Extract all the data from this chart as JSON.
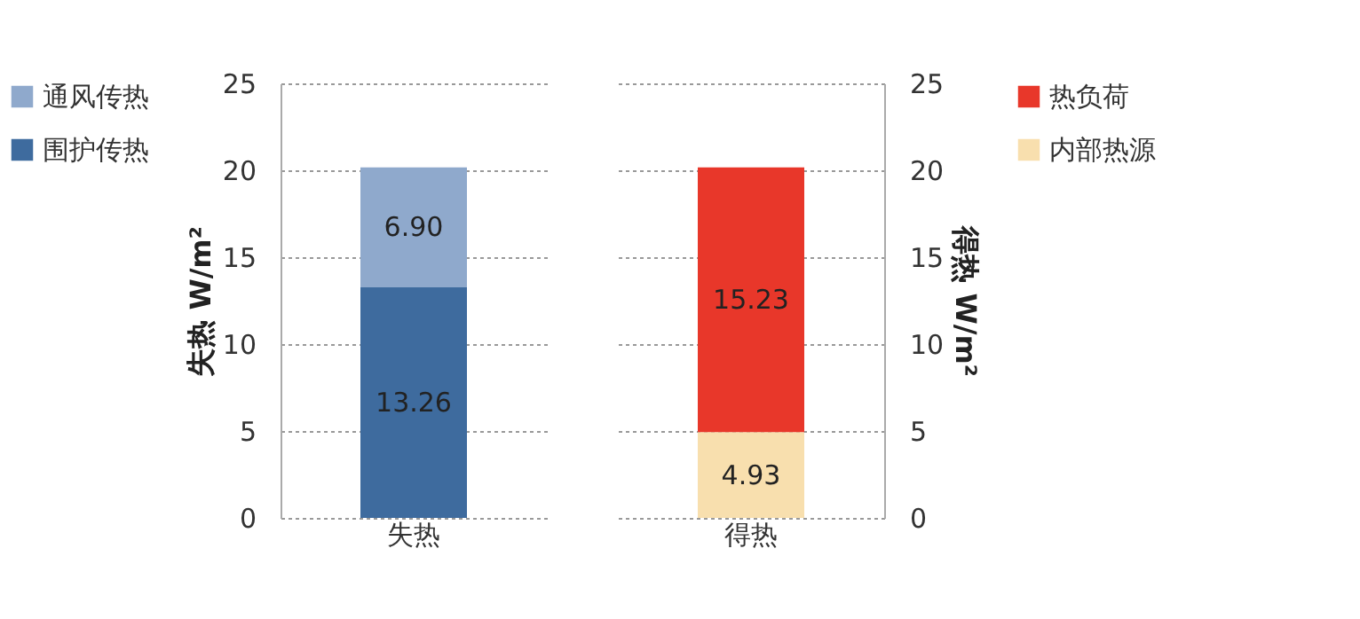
{
  "chart_data": [
    {
      "type": "bar",
      "stacked": true,
      "categories": [
        "失热"
      ],
      "ylabel": "失热 W/m²",
      "ylim": [
        0,
        25
      ],
      "yticks": [
        0,
        5,
        10,
        15,
        20,
        25
      ],
      "grid": "y",
      "legend": "left",
      "series": [
        {
          "name": "围护传热",
          "color": "#3e6b9e",
          "values": [
            13.26
          ],
          "value_labels": [
            "13.26"
          ]
        },
        {
          "name": "通风传热",
          "color": "#8fa9cc",
          "values": [
            6.9
          ],
          "value_labels": [
            "6.90"
          ]
        }
      ]
    },
    {
      "type": "bar",
      "stacked": true,
      "categories": [
        "得热"
      ],
      "y2label": "得热 W/m²",
      "y2lim": [
        0,
        25
      ],
      "y2ticks": [
        0,
        5,
        10,
        15,
        20,
        25
      ],
      "grid": "y",
      "legend": "right",
      "series": [
        {
          "name": "内部热源",
          "color": "#f8dfae",
          "values": [
            4.93
          ],
          "value_labels": [
            "4.93"
          ],
          "axis": "y2"
        },
        {
          "name": "热负荷",
          "color": "#e8372a",
          "values": [
            15.23
          ],
          "value_labels": [
            "15.23"
          ],
          "axis": "y2"
        }
      ]
    }
  ]
}
